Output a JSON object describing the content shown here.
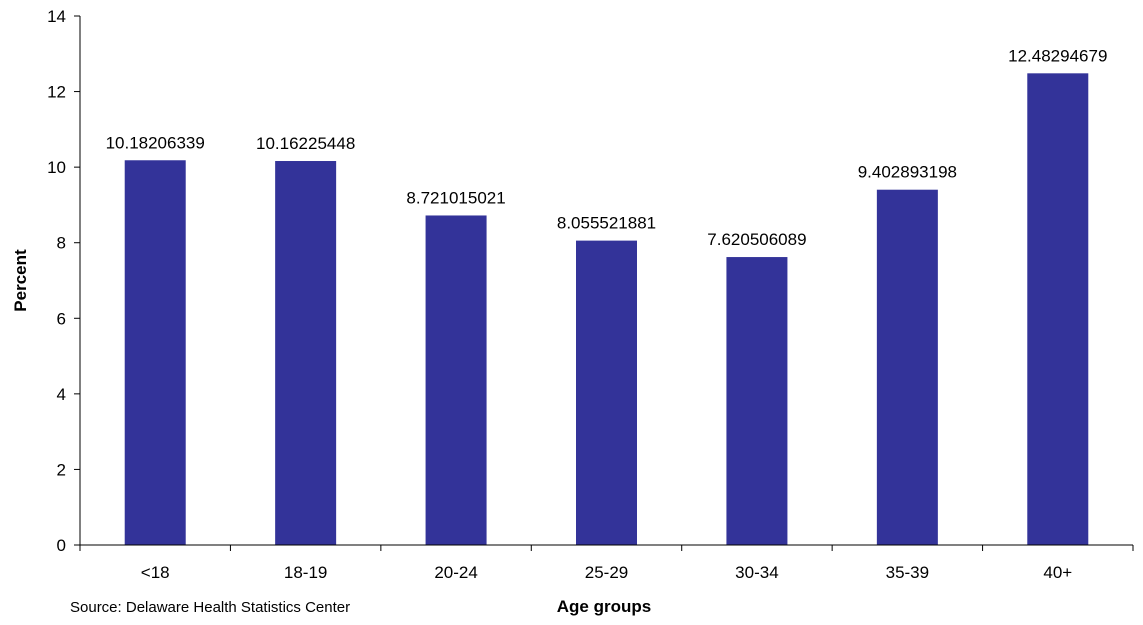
{
  "chart_data": {
    "type": "bar",
    "categories": [
      "<18",
      "18-19",
      "20-24",
      "25-29",
      "30-34",
      "35-39",
      "40+"
    ],
    "values": [
      10.18206339,
      10.16225448,
      8.721015021,
      8.055521881,
      7.620506089,
      9.402893198,
      12.48294679
    ],
    "data_labels": [
      "10.18206339",
      "10.16225448",
      "8.721015021",
      "8.055521881",
      "7.620506089",
      "9.402893198",
      "12.48294679"
    ],
    "title": "",
    "xlabel": "Age groups",
    "ylabel": "Percent",
    "ylim": [
      0,
      14
    ],
    "yticks": [
      0,
      2,
      4,
      6,
      8,
      10,
      12,
      14
    ],
    "ytick_labels": [
      "0",
      "2",
      "4",
      "6",
      "8",
      "10",
      "12",
      "14"
    ],
    "grid": false,
    "legend": "none",
    "bar_color": "#333399",
    "axis_color": "#000000"
  },
  "source_note": "Source: Delaware Health Statistics Center"
}
